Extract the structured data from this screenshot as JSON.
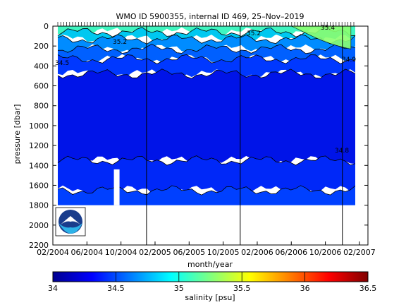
{
  "chart_data": {
    "type": "heatmap",
    "title": "WMO ID 5900355, internal ID 469, 25–Nov–2019",
    "xlabel": "month/year",
    "ylabel": "pressure [dbar]",
    "x_ticks": [
      "02/2004",
      "06/2004",
      "10/2004",
      "02/2005",
      "06/2005",
      "10/2005",
      "02/2006",
      "06/2006",
      "10/2006",
      "02/2007"
    ],
    "y_ticks": [
      0,
      200,
      400,
      600,
      800,
      1000,
      1200,
      1400,
      1600,
      1800,
      2000,
      2200
    ],
    "ylim": [
      0,
      2200
    ],
    "y_reversed": true,
    "xlim": [
      "02/2004",
      "03/2007"
    ],
    "vertical_markers": [
      "01/2005",
      "12/2005",
      "12/2006"
    ],
    "colorbar": {
      "label": "salinity [psu]",
      "range": [
        34,
        36.5
      ],
      "ticks": [
        "34",
        "34.5",
        "35",
        "35.5",
        "36",
        "36.5"
      ],
      "colormap": "jet"
    },
    "contour_labels": [
      "35.2",
      "34.9",
      "34.5",
      "35.4",
      "34.8",
      "35.2"
    ],
    "layers": [
      {
        "salinity": 35.3,
        "top_dbar": 0,
        "bottom_dbar": 60,
        "color": "#3ff5c0"
      },
      {
        "salinity": 35.0,
        "top_dbar": 60,
        "bottom_dbar": 130,
        "color": "#00c8f0"
      },
      {
        "salinity": 34.85,
        "top_dbar": 130,
        "bottom_dbar": 230,
        "color": "#008cff"
      },
      {
        "salinity": 34.7,
        "top_dbar": 230,
        "bottom_dbar": 330,
        "color": "#0060ff"
      },
      {
        "salinity": 34.6,
        "top_dbar": 330,
        "bottom_dbar": 480,
        "color": "#0038ff"
      },
      {
        "salinity": 34.5,
        "top_dbar": 480,
        "bottom_dbar": 1350,
        "color": "#0014e8"
      },
      {
        "salinity": 34.55,
        "top_dbar": 1350,
        "bottom_dbar": 1650,
        "color": "#0028f8"
      },
      {
        "salinity": 34.6,
        "top_dbar": 1650,
        "bottom_dbar": 1800,
        "color": "#0040ff"
      }
    ],
    "warm_surface_patch": {
      "salinity": 35.5,
      "from": "06/2006",
      "to": "01/2007",
      "color": "#8cff70"
    },
    "data_gap": {
      "from": "09/2004",
      "to": "10/2004",
      "top_dbar": 1440,
      "bottom_dbar": 1800
    },
    "logo": "noaa-logo"
  }
}
